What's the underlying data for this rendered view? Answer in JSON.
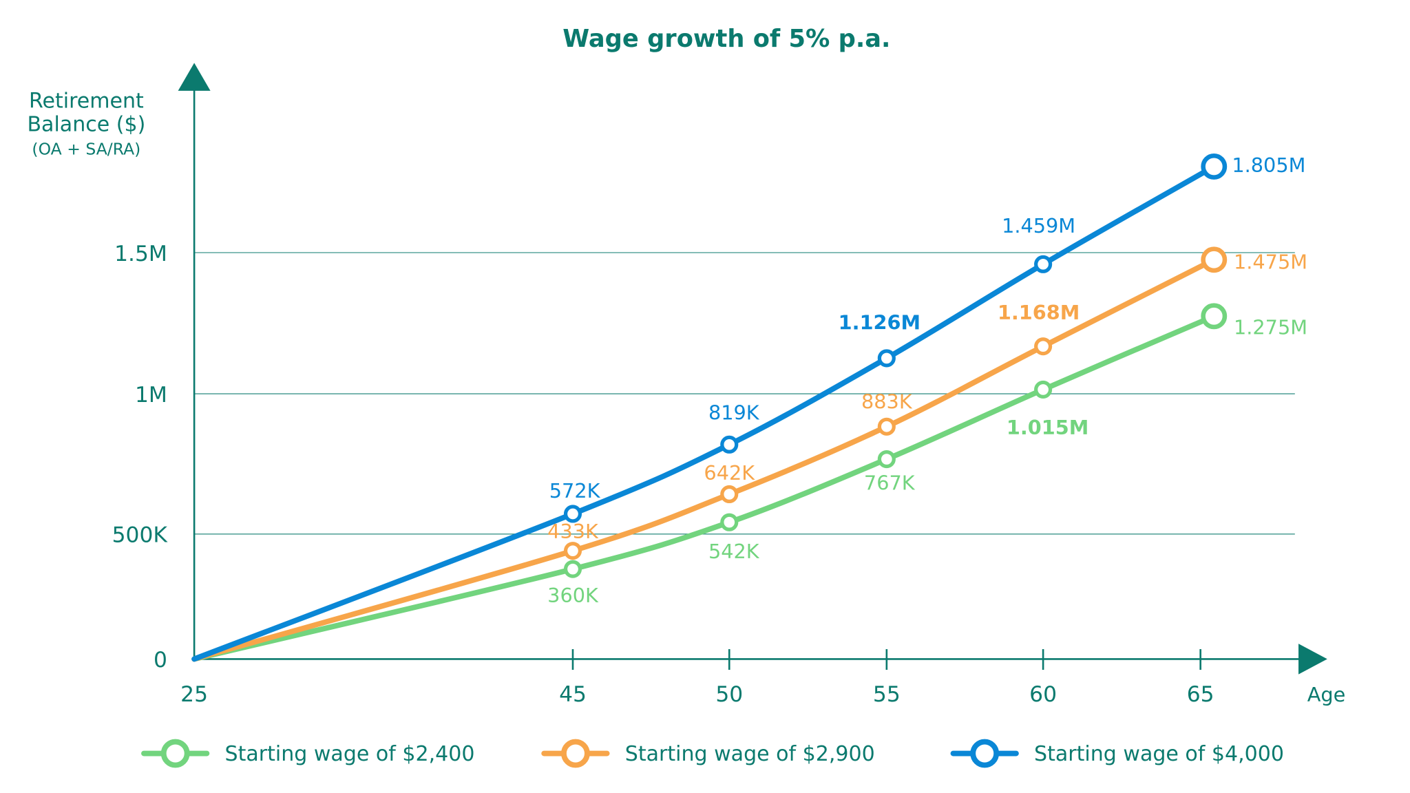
{
  "chart_data": {
    "type": "line",
    "title": "Wage growth of 5% p.a.",
    "ylabel": [
      "Retirement",
      "Balance ($)",
      "(OA + SA/RA)"
    ],
    "xlabel": "Age",
    "x": [
      25,
      45,
      50,
      55,
      60,
      65
    ],
    "x_tick_labels": [
      "25",
      "45",
      "50",
      "55",
      "60",
      "65"
    ],
    "y_ticks": [
      0,
      500000,
      1000000,
      1500000
    ],
    "y_tick_labels": [
      "0",
      "500K",
      "1M",
      "1.5M"
    ],
    "grid": "horizontal",
    "legend_position": "bottom",
    "axis_color": "#0b7a6e",
    "series": [
      {
        "name": "Starting wage of $2,400",
        "color": "#72d47e",
        "values": [
          0,
          360000,
          542000,
          767000,
          1015000,
          1275000
        ],
        "labels": [
          "",
          "360K",
          "542K",
          "767K",
          "1.015M",
          "1.275M"
        ]
      },
      {
        "name": "Starting wage of $2,900",
        "color": "#f7a54a",
        "values": [
          0,
          433000,
          642000,
          883000,
          1168000,
          1475000
        ],
        "labels": [
          "",
          "433K",
          "642K",
          "883K",
          "1.168M",
          "1.475M"
        ]
      },
      {
        "name": "Starting wage of $4,000",
        "color": "#0a87d6",
        "values": [
          0,
          572000,
          819000,
          1126000,
          1459000,
          1805000
        ],
        "labels": [
          "",
          "572K",
          "819K",
          "1.126M",
          "1.459M",
          "1.805M"
        ]
      }
    ]
  }
}
